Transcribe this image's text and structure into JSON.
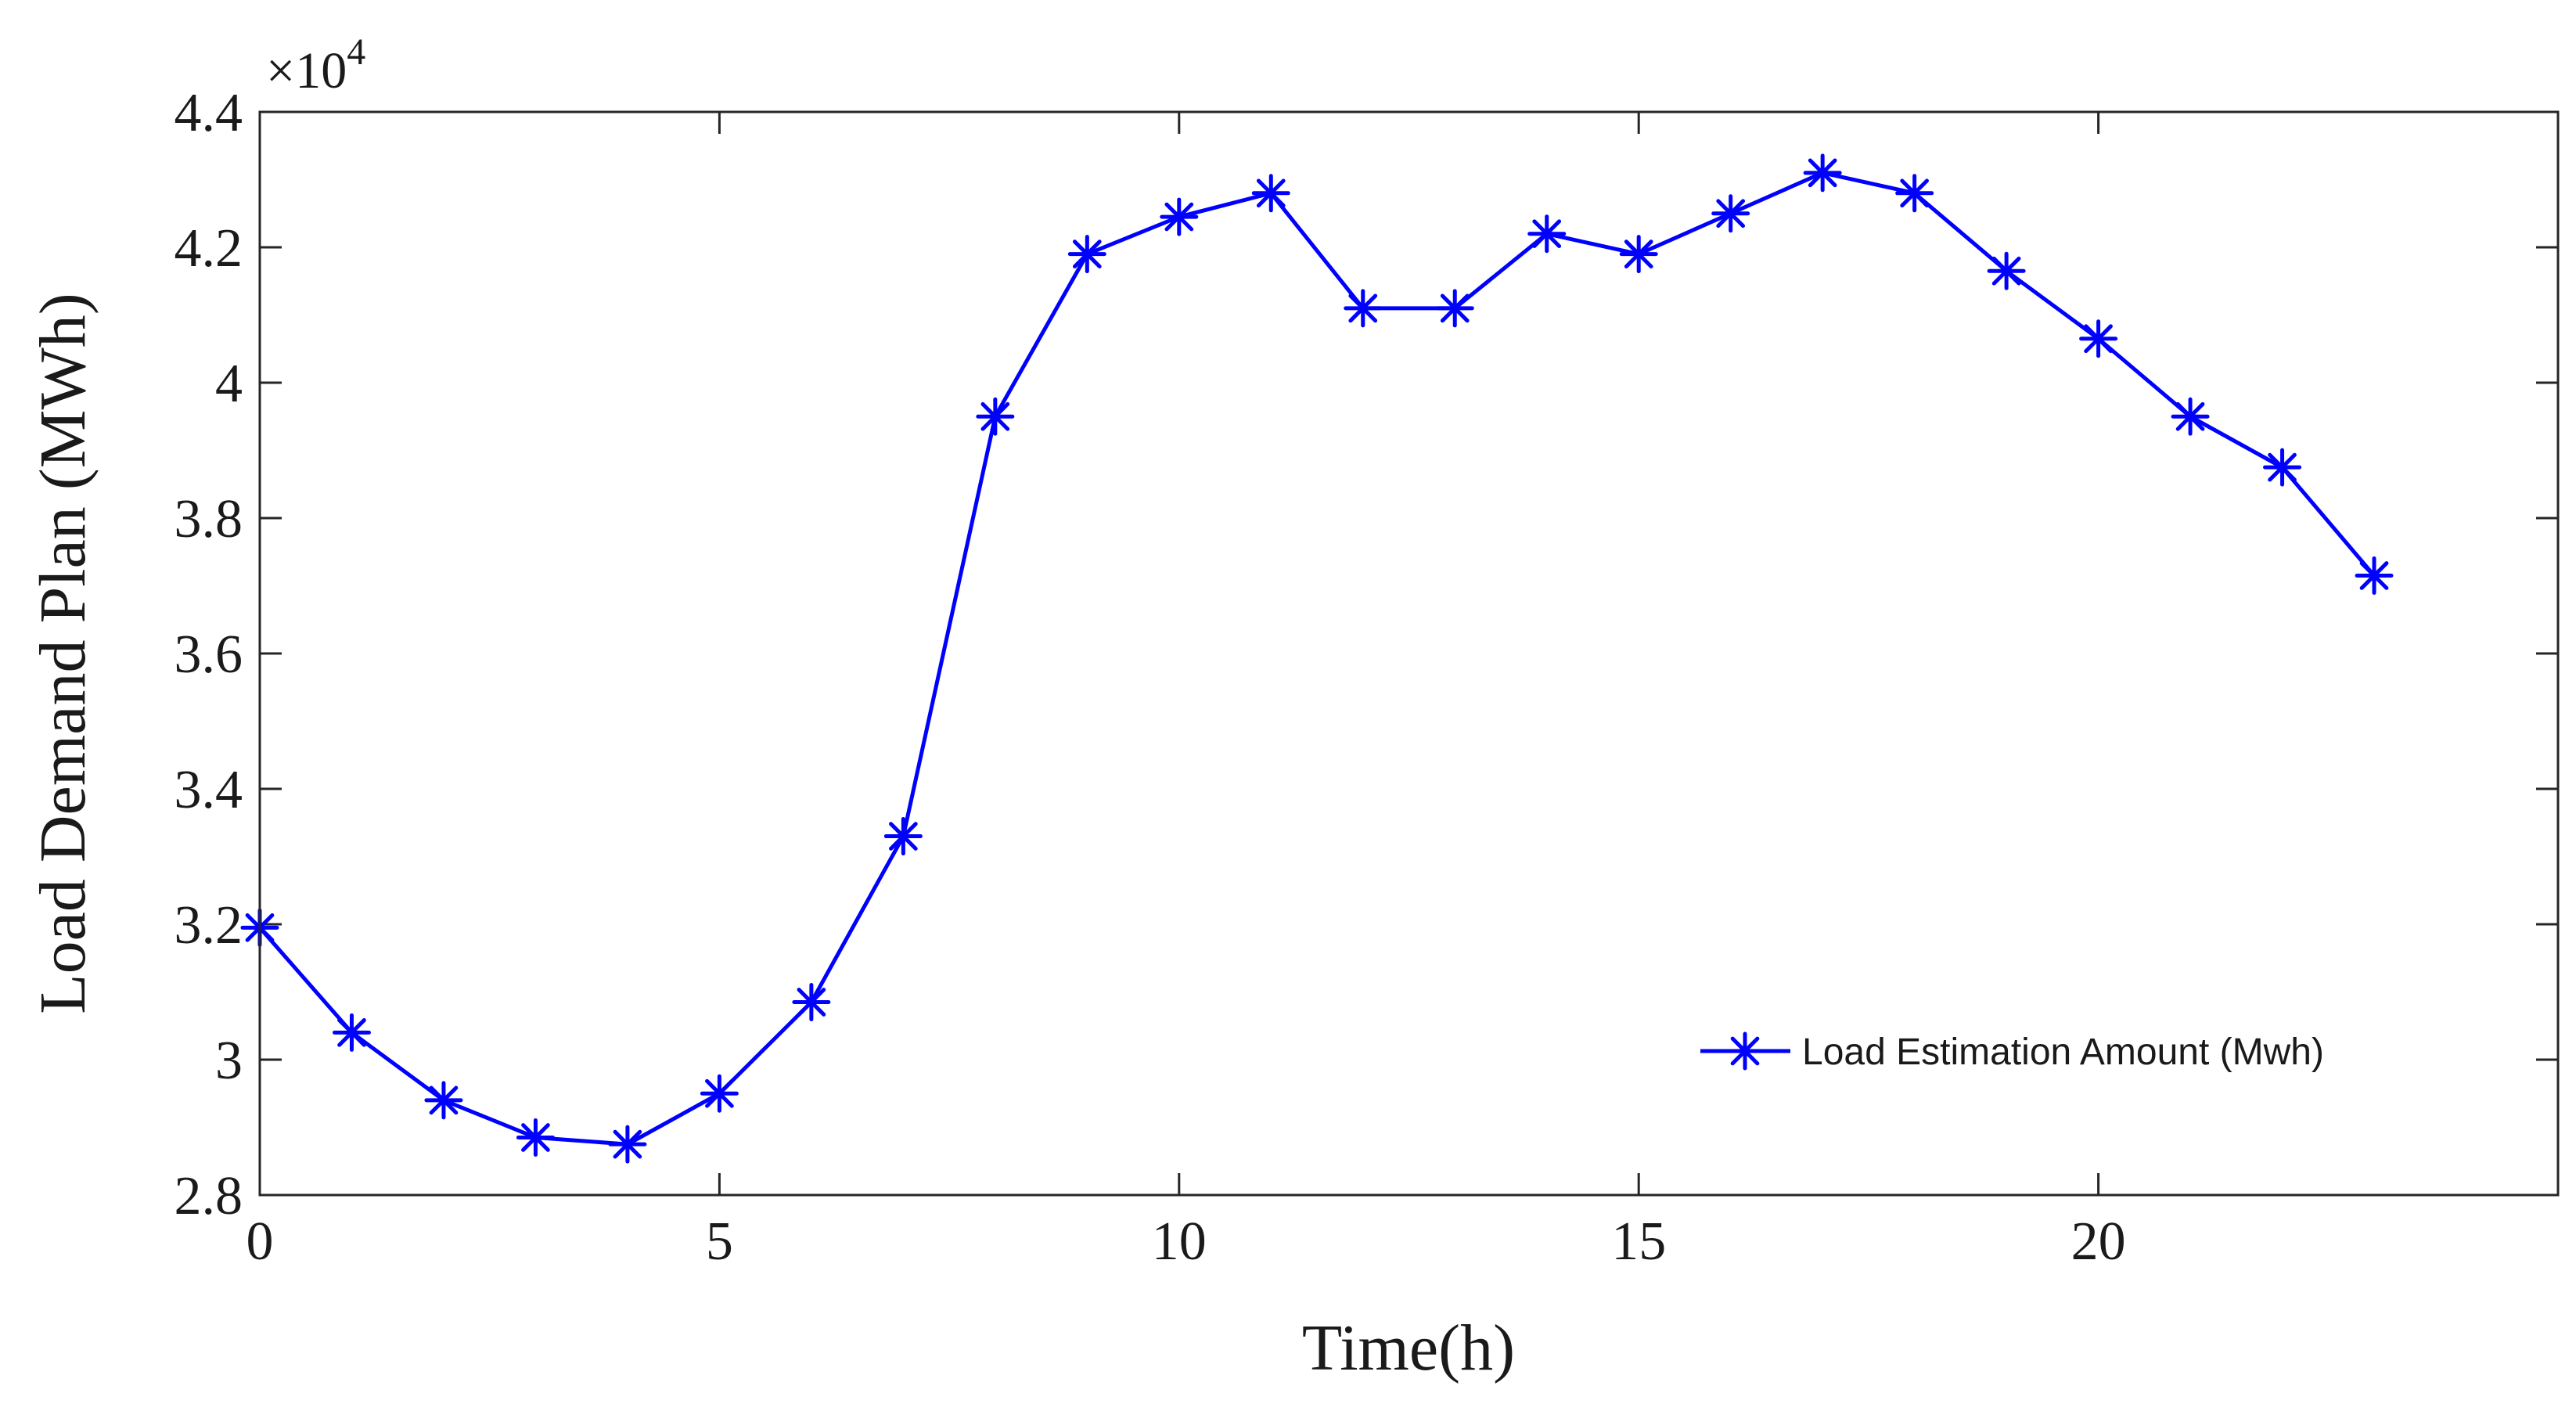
{
  "chart_data": {
    "type": "line",
    "xlabel": "Time(h)",
    "ylabel": "Load Demand Plan (MWh)",
    "y_exponent_label": {
      "base": "×10",
      "power": "4"
    },
    "xlim": [
      0,
      25
    ],
    "ylim": [
      2.8,
      4.4
    ],
    "xticks": [
      0,
      5,
      10,
      15,
      20
    ],
    "xtick_labels": [
      "0",
      "5",
      "10",
      "15",
      "20"
    ],
    "yticks": [
      2.8,
      3.0,
      3.2,
      3.4,
      3.6,
      3.8,
      4.0,
      4.2,
      4.4
    ],
    "ytick_labels": [
      "2.8",
      "3",
      "3.2",
      "3.4",
      "3.6",
      "3.8",
      "4",
      "4.2",
      "4.4"
    ],
    "grid": false,
    "legend_position": "bottom-right",
    "series": [
      {
        "name": "Load Estimation Amount (Mwh)",
        "color": "#0000ff",
        "marker": "asterisk",
        "x": [
          0,
          1,
          2,
          3,
          4,
          5,
          6,
          7,
          8,
          9,
          10,
          11,
          12,
          13,
          14,
          15,
          16,
          17,
          18,
          19,
          20,
          21,
          22,
          23
        ],
        "values": [
          3.195,
          3.04,
          2.94,
          2.885,
          2.875,
          2.95,
          3.085,
          3.33,
          3.95,
          4.19,
          4.245,
          4.28,
          4.11,
          4.11,
          4.22,
          4.19,
          4.25,
          4.31,
          4.28,
          4.165,
          4.065,
          3.95,
          3.875,
          3.715
        ]
      }
    ]
  }
}
